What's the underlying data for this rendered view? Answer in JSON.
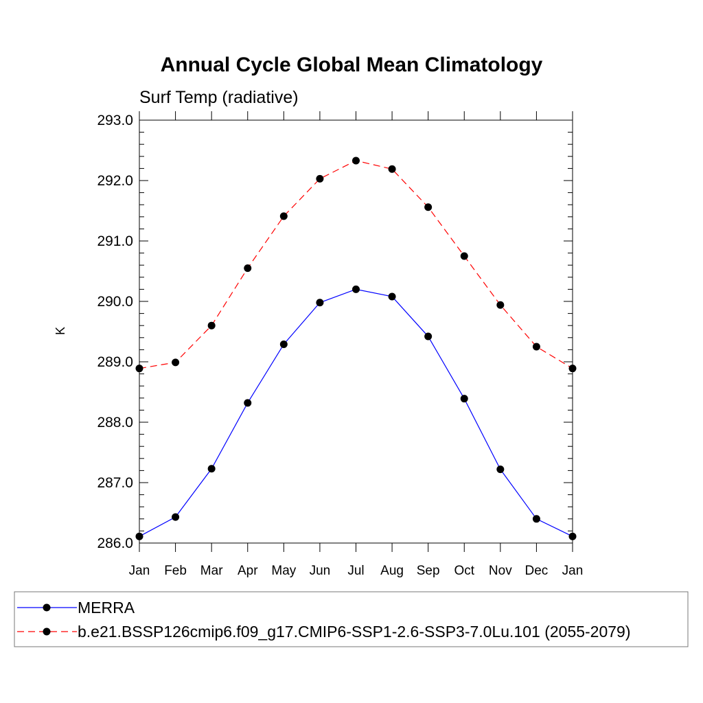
{
  "chart_data": {
    "type": "line",
    "title": "Annual Cycle Global Mean Climatology",
    "subtitle": "Surf Temp (radiative)",
    "xlabel": "",
    "ylabel": "K",
    "categories": [
      "Jan",
      "Feb",
      "Mar",
      "Apr",
      "May",
      "Jun",
      "Jul",
      "Aug",
      "Sep",
      "Oct",
      "Nov",
      "Dec",
      "Jan"
    ],
    "ylim": [
      286.0,
      293.0
    ],
    "yticks": [
      "286.0",
      "287.0",
      "288.0",
      "289.0",
      "290.0",
      "291.0",
      "292.0",
      "293.0"
    ],
    "grid": false,
    "legend_position": "bottom",
    "series": [
      {
        "name": "MERRA",
        "color": "#0000ff",
        "line_style": "solid",
        "marker": "filled-circle",
        "values": [
          286.11,
          286.43,
          287.23,
          288.32,
          289.29,
          289.98,
          290.2,
          290.08,
          289.42,
          288.39,
          287.22,
          286.4,
          286.11
        ]
      },
      {
        "name": "b.e21.BSSP126cmip6.f09_g17.CMIP6-SSP1-2.6-SSP3-7.0Lu.101 (2055-2079)",
        "color": "#ff0000",
        "line_style": "dashed",
        "marker": "filled-circle",
        "values": [
          288.89,
          288.99,
          289.6,
          290.55,
          291.41,
          292.03,
          292.33,
          292.19,
          291.56,
          290.75,
          289.94,
          289.25,
          288.89
        ]
      }
    ]
  }
}
